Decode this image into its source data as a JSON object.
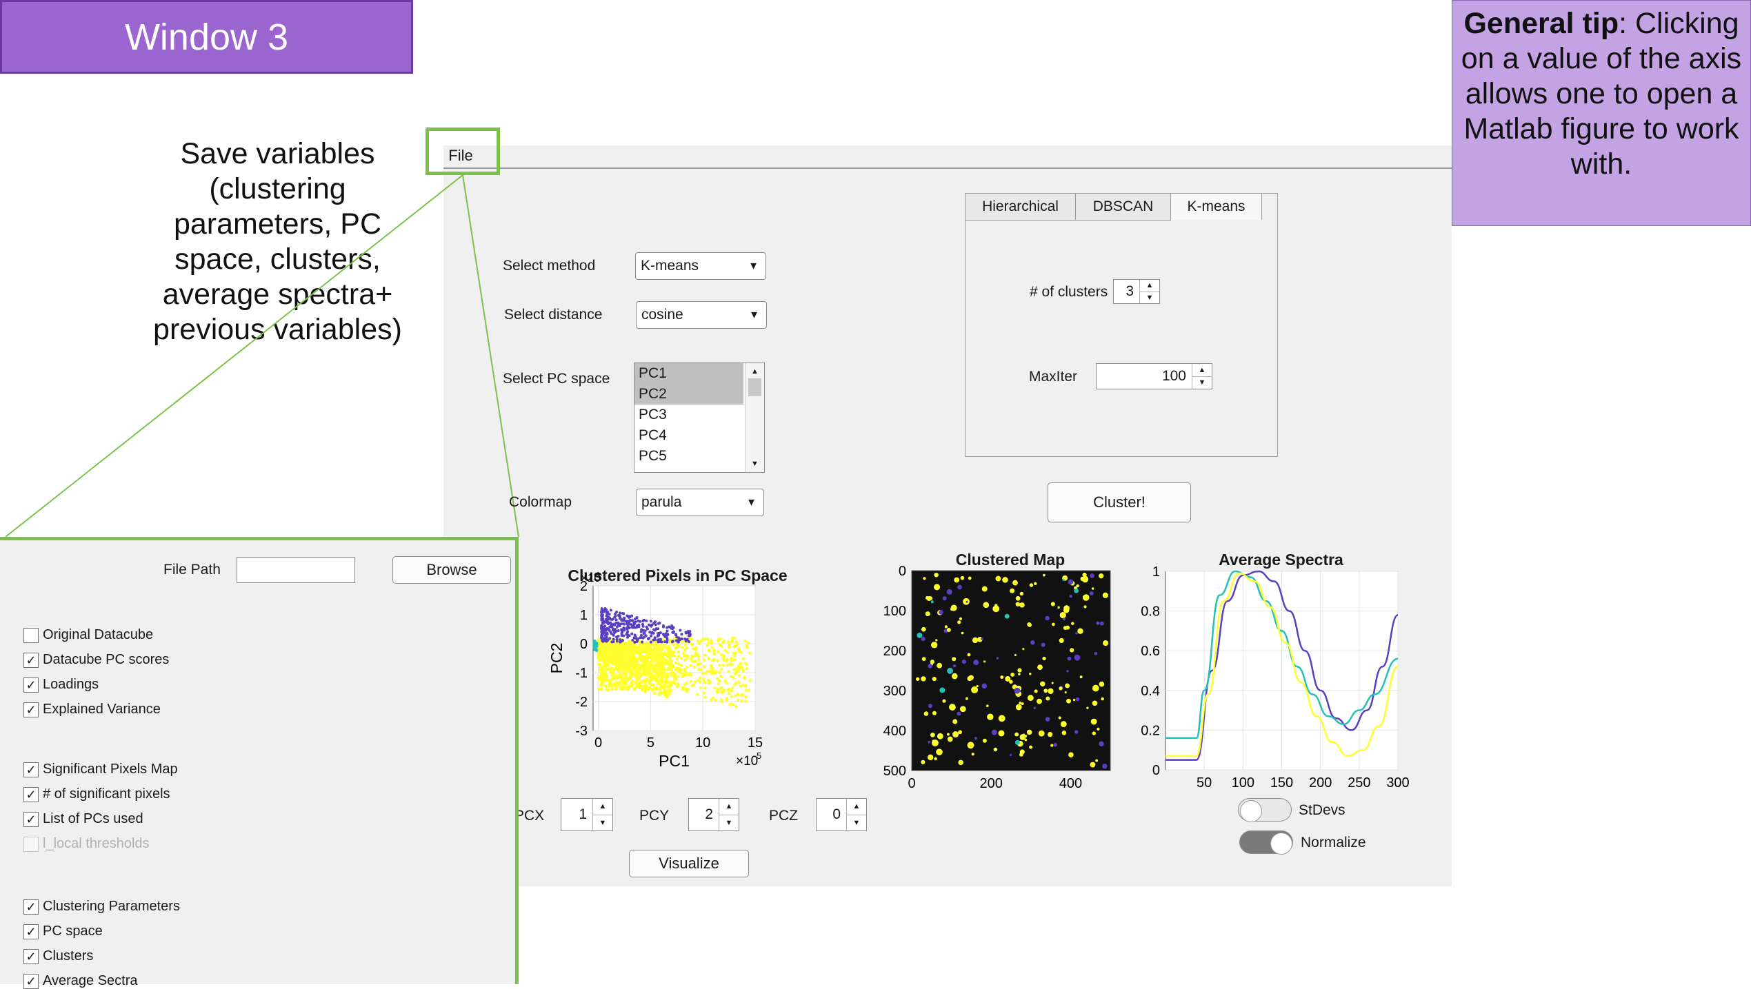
{
  "window_title": "Window 3",
  "tip": {
    "bold": "General tip",
    "text": ": Clicking on a value of the axis allows one to open a Matlab figure to work with."
  },
  "annotation": "Save variables (clustering parameters, PC space, clusters, average spectra+ previous variables)",
  "menu": {
    "file_label": "File"
  },
  "controls": {
    "method_label": "Select method",
    "method_value": "K-means",
    "distance_label": "Select distance",
    "distance_value": "cosine",
    "pc_space_label": "Select PC space",
    "pc_items": [
      {
        "label": "PC1",
        "selected": true
      },
      {
        "label": "PC2",
        "selected": true
      },
      {
        "label": "PC3",
        "selected": false
      },
      {
        "label": "PC4",
        "selected": false
      },
      {
        "label": "PC5",
        "selected": false
      }
    ],
    "colormap_label": "Colormap",
    "colormap_value": "parula"
  },
  "tabs": [
    {
      "label": "Hierarchical",
      "active": false
    },
    {
      "label": "DBSCAN",
      "active": false
    },
    {
      "label": "K-means",
      "active": true
    }
  ],
  "kmeans": {
    "clusters_label": "# of clusters",
    "clusters_value": "3",
    "maxiter_label": "MaxIter",
    "maxiter_value": "100"
  },
  "cluster_button": "Cluster!",
  "pcx": {
    "label": "PCX",
    "value": "1"
  },
  "pcy": {
    "label": "PCY",
    "value": "2"
  },
  "pcz": {
    "label": "PCZ",
    "value": "0"
  },
  "visualize_button": "Visualize",
  "toggles": {
    "stdevs_label": "StDevs",
    "stdevs_on": false,
    "normalize_label": "Normalize",
    "normalize_on": true
  },
  "colors": {
    "cluster1": "#5a3fc0",
    "cluster2": "#ffff2e",
    "cluster3": "#24c0b7",
    "accent_green": "#7cc24a",
    "title_purple": "#9b65d0",
    "tip_purple": "#c3a3e3"
  },
  "save_panel": {
    "file_path_label": "File Path",
    "file_path_value": "",
    "browse_button": "Browse",
    "groups": [
      [
        {
          "label": "Original Datacube",
          "checked": false,
          "enabled": true
        },
        {
          "label": "Datacube PC scores",
          "checked": true,
          "enabled": true
        },
        {
          "label": "Loadings",
          "checked": true,
          "enabled": true
        },
        {
          "label": "Explained Variance",
          "checked": true,
          "enabled": true
        }
      ],
      [
        {
          "label": "Significant Pixels Map",
          "checked": true,
          "enabled": true
        },
        {
          "label": "# of significant pixels",
          "checked": true,
          "enabled": true
        },
        {
          "label": "List of PCs used",
          "checked": true,
          "enabled": true
        },
        {
          "label": "l_local thresholds",
          "checked": false,
          "enabled": false
        }
      ],
      [
        {
          "label": "Clustering Parameters",
          "checked": true,
          "enabled": true
        },
        {
          "label": "PC space",
          "checked": true,
          "enabled": true
        },
        {
          "label": "Clusters",
          "checked": true,
          "enabled": true
        },
        {
          "label": "Average Sectra",
          "checked": true,
          "enabled": true
        }
      ]
    ]
  },
  "chart_data": [
    {
      "type": "scatter",
      "title": "Clustered Pixels in PC Space",
      "xlabel": "PC1",
      "ylabel": "PC2",
      "x_exponent": "×10",
      "x_exponent_power": "5",
      "y_exponent": "×10",
      "y_exponent_power": "5",
      "xlim": [
        -0.5,
        15
      ],
      "ylim": [
        -3,
        2
      ],
      "xticks": [
        "0",
        "5",
        "10",
        "15"
      ],
      "yticks": [
        "2",
        "1",
        "0",
        "-1",
        "-2",
        "-3"
      ],
      "grid": true,
      "series": [
        {
          "cluster": 1,
          "color": "#5a3fc0",
          "x_range": [
            0.5,
            9
          ],
          "y_range": [
            0,
            1.4
          ]
        },
        {
          "cluster": 2,
          "color": "#ffff2e",
          "x_range": [
            0,
            15
          ],
          "y_range": [
            -2.4,
            0.3
          ]
        },
        {
          "cluster": 3,
          "color": "#24c0b7",
          "x_range": [
            -0.5,
            0
          ],
          "y_range": [
            -0.3,
            0.1
          ]
        }
      ]
    },
    {
      "type": "heatmap",
      "title": "Clustered Map",
      "xlim": [
        0,
        500
      ],
      "ylim": [
        500,
        0
      ],
      "xticks": [
        "0",
        "200",
        "400"
      ],
      "yticks": [
        "0",
        "100",
        "200",
        "300",
        "400",
        "500"
      ],
      "background": "#111111",
      "clusters": [
        "#5a3fc0",
        "#ffff2e",
        "#24c0b7"
      ]
    },
    {
      "type": "line",
      "title": "Average Spectra",
      "xlim": [
        0,
        300
      ],
      "ylim": [
        0,
        1
      ],
      "xticks": [
        "50",
        "100",
        "150",
        "200",
        "250",
        "300"
      ],
      "yticks": [
        "1",
        "0.8",
        "0.6",
        "0.4",
        "0.2",
        "0"
      ],
      "grid": true,
      "series": [
        {
          "color": "#5a3fc0",
          "x": [
            0,
            40,
            60,
            80,
            100,
            120,
            140,
            160,
            180,
            200,
            220,
            240,
            260,
            280,
            300
          ],
          "y": [
            0.05,
            0.05,
            0.5,
            0.85,
            0.98,
            1.0,
            0.95,
            0.8,
            0.6,
            0.4,
            0.26,
            0.2,
            0.3,
            0.52,
            0.78
          ]
        },
        {
          "color": "#24c0b7",
          "x": [
            0,
            40,
            50,
            70,
            90,
            110,
            130,
            150,
            170,
            190,
            210,
            230,
            250,
            270,
            300
          ],
          "y": [
            0.16,
            0.16,
            0.4,
            0.88,
            1.0,
            0.97,
            0.85,
            0.7,
            0.52,
            0.38,
            0.27,
            0.23,
            0.3,
            0.38,
            0.56
          ]
        },
        {
          "color": "#ffff2e",
          "x": [
            0,
            40,
            55,
            75,
            95,
            115,
            135,
            155,
            175,
            195,
            215,
            235,
            255,
            275,
            300
          ],
          "y": [
            0.07,
            0.07,
            0.38,
            0.85,
            0.99,
            0.95,
            0.82,
            0.64,
            0.44,
            0.27,
            0.14,
            0.07,
            0.1,
            0.22,
            0.52
          ]
        }
      ]
    }
  ]
}
